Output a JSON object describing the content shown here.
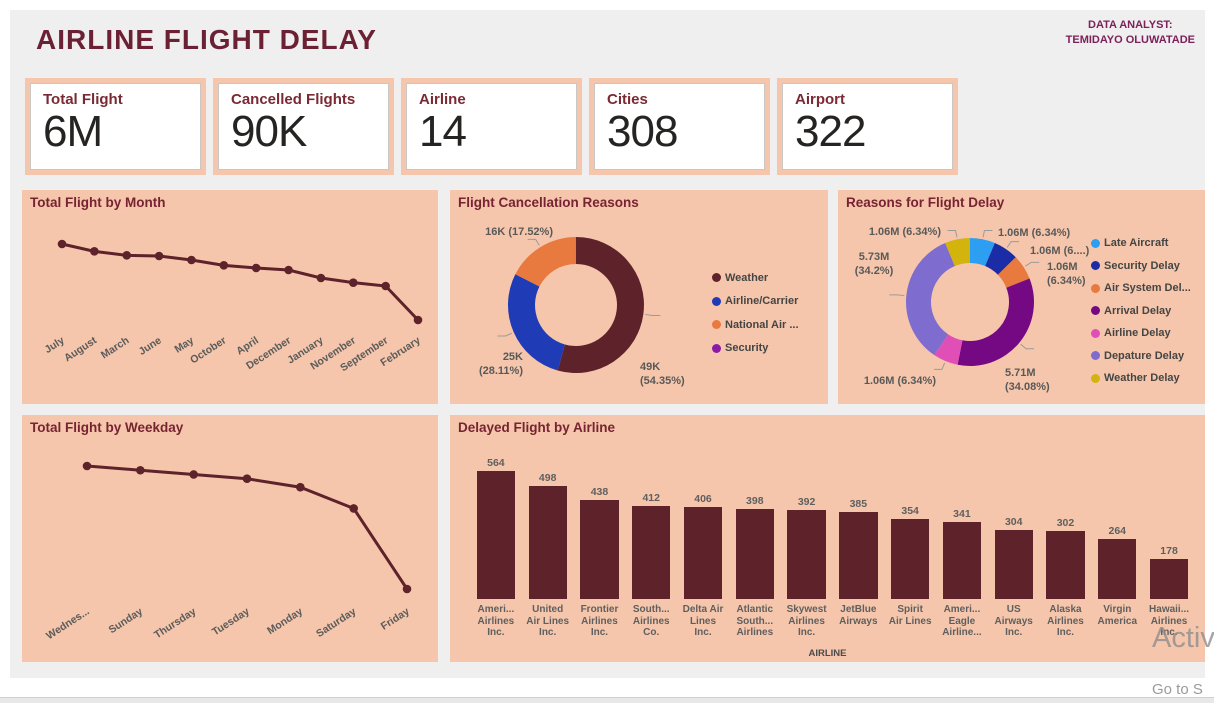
{
  "header": {
    "title": "AIRLINE FLIGHT DELAY",
    "analyst_label": "DATA ANALYST:",
    "analyst_name": "TEMIDAYO OLUWATADE"
  },
  "kpis": [
    {
      "label": "Total Flight",
      "value": "6M"
    },
    {
      "label": "Cancelled Flights",
      "value": "90K"
    },
    {
      "label": "Airline",
      "value": "14"
    },
    {
      "label": "Cities",
      "value": "308"
    },
    {
      "label": "Airport",
      "value": "322"
    }
  ],
  "colors": {
    "canvas_bg": "#EFEFEF",
    "panel_bg": "#F5C6AB",
    "maroon": "#5E222B",
    "title_maroon": "#6B2133",
    "analyst_purple": "#7C2159",
    "axis_gray": "#5b5b5b"
  },
  "chart_data": [
    {
      "id": "month_line",
      "type": "line",
      "title": "Total Flight by Month",
      "categories": [
        "July",
        "August",
        "March",
        "June",
        "May",
        "October",
        "April",
        "December",
        "January",
        "November",
        "September",
        "February"
      ],
      "values": [
        521000,
        510000,
        504000,
        503000,
        497000,
        489000,
        485000,
        482000,
        470000,
        463000,
        458000,
        407000
      ],
      "values_estimated": true,
      "y_axis_visible": false,
      "color": "#5E222B"
    },
    {
      "id": "cancel_donut",
      "type": "pie",
      "title": "Flight Cancellation Reasons",
      "legend_position": "right",
      "slices": [
        {
          "name": "Weather",
          "legend": "Weather",
          "value": 49000,
          "pct": 54.35,
          "callout": [
            "49K",
            "(54.35%)"
          ],
          "color": "#5E222B"
        },
        {
          "name": "Airline/Carrier",
          "legend": "Airline/Carrier",
          "value": 25000,
          "pct": 28.11,
          "callout": [
            "25K",
            "(28.11%)"
          ],
          "color": "#1F3BB5"
        },
        {
          "name": "National Air System",
          "legend": "National Air ...",
          "value": 16000,
          "pct": 17.52,
          "callout": [
            "16K (17.52%)"
          ],
          "color": "#E8793F"
        },
        {
          "name": "Security",
          "legend": "Security",
          "value": 18,
          "pct": 0.02,
          "color": "#8A1BA8"
        }
      ]
    },
    {
      "id": "delay_donut",
      "type": "pie",
      "title": "Reasons for Flight Delay",
      "legend_position": "right",
      "slices": [
        {
          "name": "Late Aircraft",
          "legend": "Late Aircraft",
          "value": 1060000,
          "pct": 6.34,
          "callout": [
            "1.06M (6.34%)"
          ],
          "color": "#2C9FF2"
        },
        {
          "name": "Security Delay",
          "legend": "Security Delay",
          "value": 1060000,
          "pct": 6.34,
          "callout": [
            "1.06M (6....)"
          ],
          "color": "#1B2DA6"
        },
        {
          "name": "Air System Delay",
          "legend": "Air System Del...",
          "value": 1060000,
          "pct": 6.34,
          "callout": [
            "1.06M",
            "(6.34%)"
          ],
          "color": "#E8793F"
        },
        {
          "name": "Arrival Delay",
          "legend": "Arrival Delay",
          "value": 5710000,
          "pct": 34.08,
          "callout": [
            "5.71M",
            "(34.08%)"
          ],
          "color": "#740983"
        },
        {
          "name": "Airline Delay",
          "legend": "Airline Delay",
          "value": 1060000,
          "pct": 6.34,
          "callout": [
            "1.06M (6.34%)"
          ],
          "color": "#E04FB5"
        },
        {
          "name": "Depature Delay",
          "legend": "Depature Delay",
          "value": 5730000,
          "pct": 34.2,
          "callout": [
            "5.73M",
            "(34.2%)"
          ],
          "color": "#7E6CCE"
        },
        {
          "name": "Weather Delay",
          "legend": "Weather Delay",
          "value": 1060000,
          "pct": 6.34,
          "callout": [
            "1.06M (6.34%)"
          ],
          "color": "#D2B40D"
        }
      ]
    },
    {
      "id": "weekday_line",
      "type": "line",
      "title": "Total Flight by Weekday",
      "categories": [
        "Wednes...",
        "Sunday",
        "Thursday",
        "Tuesday",
        "Monday",
        "Saturday",
        "Friday"
      ],
      "values": [
        900000,
        890000,
        880000,
        870000,
        850000,
        800000,
        610000
      ],
      "values_estimated": true,
      "y_axis_visible": false,
      "color": "#5E222B"
    },
    {
      "id": "airline_bar",
      "type": "bar",
      "title": "Delayed Flight by Airline",
      "xlabel": "AIRLINE",
      "values": [
        564,
        498,
        438,
        412,
        406,
        398,
        392,
        385,
        354,
        341,
        304,
        302,
        264,
        178
      ],
      "categories": [
        "Ameri... Airlines Inc.",
        "United Air Lines Inc.",
        "Frontier Airlines Inc.",
        "South... Airlines Co.",
        "Delta Air Lines Inc.",
        "Atlantic South... Airlines",
        "Skywest Airlines Inc.",
        "JetBlue Airways",
        "Spirit Air Lines",
        "Ameri... Eagle Airline...",
        "US Airways Inc.",
        "Alaska Airlines Inc.",
        "Virgin America",
        "Hawaii... Airlines Inc."
      ],
      "category_lines": [
        [
          "Ameri...",
          "Airlines",
          "Inc."
        ],
        [
          "United",
          "Air Lines",
          "Inc."
        ],
        [
          "Frontier",
          "Airlines",
          "Inc."
        ],
        [
          "South...",
          "Airlines",
          "Co."
        ],
        [
          "Delta Air",
          "Lines",
          "Inc."
        ],
        [
          "Atlantic",
          "South...",
          "Airlines"
        ],
        [
          "Skywest",
          "Airlines",
          "Inc."
        ],
        [
          "JetBlue",
          "Airways"
        ],
        [
          "Spirit",
          "Air Lines"
        ],
        [
          "Ameri...",
          "Eagle",
          "Airline..."
        ],
        [
          "US",
          "Airways",
          "Inc."
        ],
        [
          "Alaska",
          "Airlines",
          "Inc."
        ],
        [
          "Virgin",
          "America"
        ],
        [
          "Hawaii...",
          "Airlines",
          "Inc."
        ]
      ],
      "bar_color": "#5E222B"
    }
  ],
  "watermark": {
    "line1": "Activ",
    "line2": "Go to S"
  }
}
